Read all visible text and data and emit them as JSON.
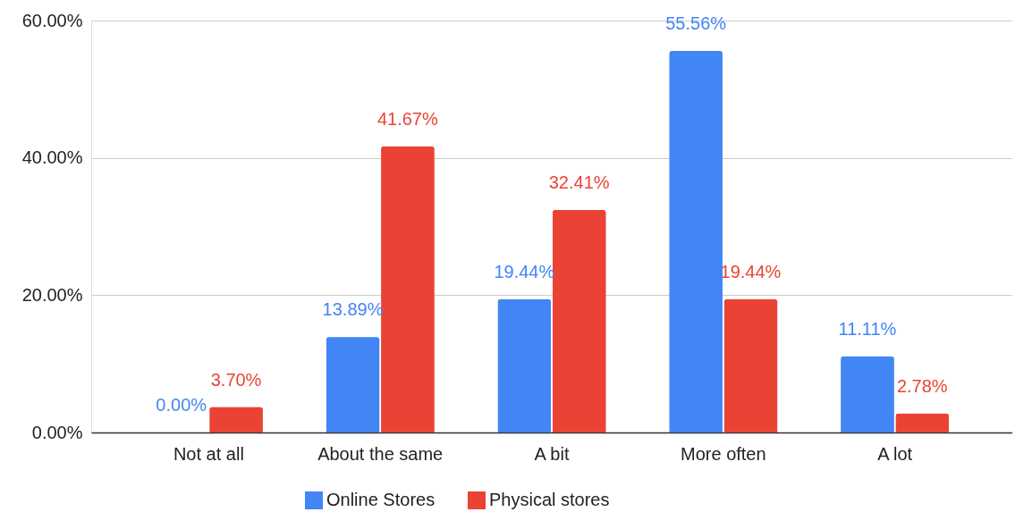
{
  "chart_data": {
    "type": "bar",
    "categories": [
      "Not at all",
      "About the same",
      "A bit",
      "More often",
      "A lot"
    ],
    "series": [
      {
        "name": "Online Stores",
        "color": "#4285f4",
        "values": [
          0,
          13.89,
          19.44,
          55.56,
          11.11
        ],
        "value_labels": [
          "0.00%",
          "13.89%",
          "19.44%",
          "55.56%",
          "11.11%"
        ]
      },
      {
        "name": "Physical stores",
        "color": "#ea4335",
        "values": [
          3.7,
          41.67,
          32.41,
          19.44,
          2.78
        ],
        "value_labels": [
          "3.70%",
          "41.67%",
          "32.41%",
          "19.44%",
          "2.78%"
        ]
      }
    ],
    "ylim": [
      0,
      60
    ],
    "yticks": [
      {
        "value": 0,
        "label": "0.00%"
      },
      {
        "value": 20,
        "label": "20.00%"
      },
      {
        "value": 40,
        "label": "40.00%"
      },
      {
        "value": 60,
        "label": "60.00%"
      }
    ],
    "grid": "y",
    "legend": "bottom"
  }
}
